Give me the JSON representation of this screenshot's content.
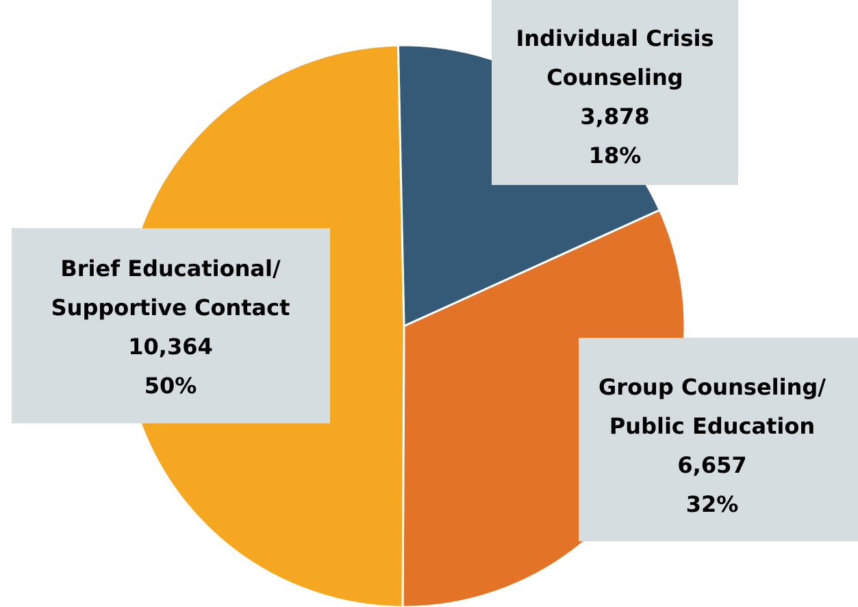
{
  "chart_data": {
    "type": "pie",
    "categories": [
      [
        "Individual Crisis",
        "Counseling"
      ],
      [
        "Group Counseling/",
        "Public Education"
      ],
      [
        "Brief Educational/",
        "Supportive Contact"
      ]
    ],
    "values": [
      3878,
      6657,
      10364
    ],
    "value_labels": [
      "3,878",
      "6,657",
      "10,364"
    ],
    "percents": [
      18,
      32,
      50
    ],
    "percent_labels": [
      "18%",
      "32%",
      "50%"
    ],
    "colors": [
      "#345a78",
      "#e37326",
      "#f6a721"
    ],
    "label_box_color": "#d6dde1"
  }
}
